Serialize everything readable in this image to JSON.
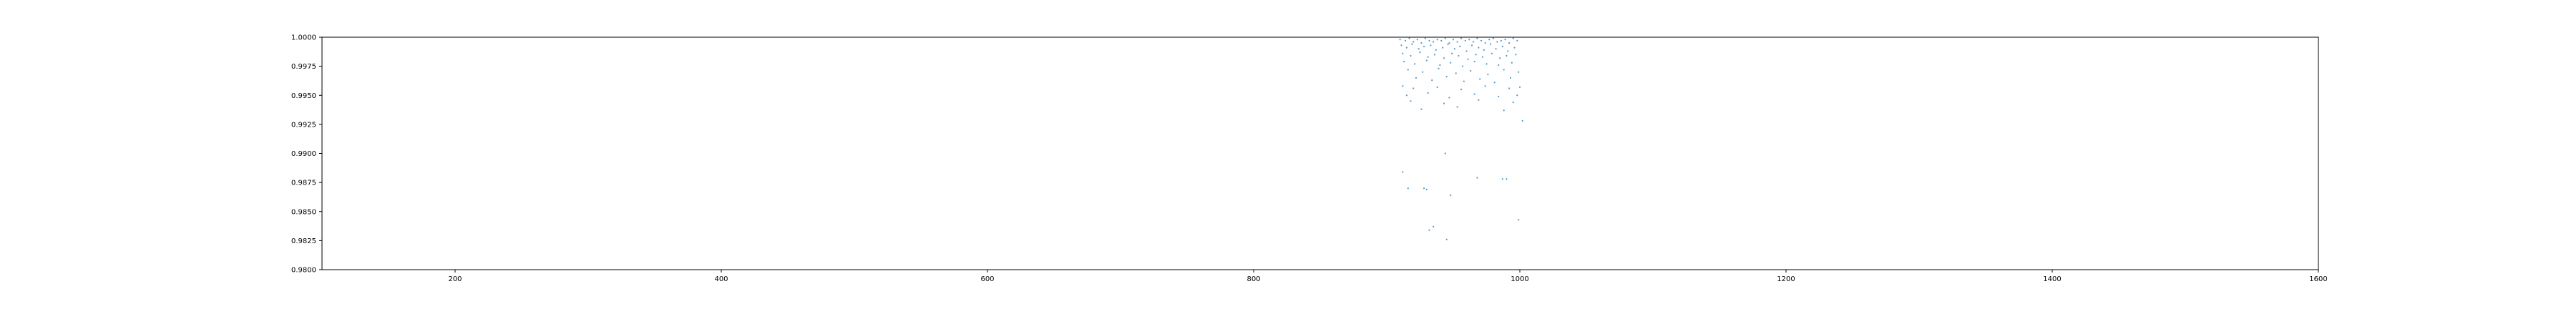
{
  "chart_data": {
    "type": "scatter",
    "title": "",
    "xlabel": "",
    "ylabel": "",
    "xlim": [
      100,
      1600
    ],
    "ylim": [
      0.98,
      1.0
    ],
    "x_ticks": [
      200,
      400,
      600,
      800,
      1000,
      1200,
      1400,
      1600
    ],
    "x_tick_labels": [
      "200",
      "400",
      "600",
      "800",
      "1000",
      "1200",
      "1400",
      "1600"
    ],
    "y_ticks": [
      0.98,
      0.9825,
      0.985,
      0.9875,
      0.99,
      0.9925,
      0.995,
      0.9975,
      1.0
    ],
    "y_tick_labels": [
      "0.9800",
      "0.9825",
      "0.9850",
      "0.9875",
      "0.9900",
      "0.9925",
      "0.9950",
      "0.9975",
      "1.0000"
    ],
    "grid": false,
    "series": [
      {
        "color": "#1f77b4",
        "marker": "point",
        "x": [
          910,
          914,
          917,
          920,
          923,
          926,
          929,
          932,
          935,
          938,
          941,
          944,
          947,
          950,
          953,
          956,
          959,
          962,
          965,
          968,
          971,
          974,
          977,
          980,
          983,
          986,
          989,
          992,
          995,
          998,
          911,
          915,
          919,
          924,
          928,
          933,
          937,
          942,
          946,
          951,
          955,
          960,
          964,
          969,
          973,
          978,
          982,
          987,
          991,
          996,
          912,
          918,
          925,
          931,
          936,
          943,
          949,
          954,
          961,
          967,
          972,
          979,
          985,
          990,
          997,
          913,
          921,
          930,
          940,
          948,
          957,
          966,
          975,
          984,
          994,
          916,
          927,
          939,
          952,
          963,
          976,
          988,
          999,
          922,
          934,
          945,
          958,
          970,
          981,
          993,
          912,
          920,
          938,
          956,
          974,
          992,
          1000,
          915,
          931,
          947,
          966,
          984,
          998,
          918,
          943,
          969,
          995,
          926,
          953,
          988,
          1002,
          912,
          944,
          990,
          968,
          987,
          928,
          930,
          916,
          948,
          932,
          999,
          935,
          945
        ],
        "y": [
          0.9998,
          0.9997,
          0.9999,
          0.9996,
          0.9998,
          0.9995,
          0.9999,
          0.9997,
          0.9996,
          0.9998,
          0.9997,
          0.9999,
          0.9995,
          0.9998,
          0.9996,
          0.9999,
          0.9997,
          0.9998,
          0.9996,
          0.9999,
          0.9997,
          0.9995,
          0.9998,
          0.9999,
          0.9996,
          0.9997,
          0.9998,
          0.9995,
          0.9999,
          0.9997,
          0.9993,
          0.9991,
          0.9994,
          0.999,
          0.9992,
          0.9993,
          0.9989,
          0.9991,
          0.9994,
          0.999,
          0.9992,
          0.9988,
          0.9993,
          0.9991,
          0.9989,
          0.9994,
          0.999,
          0.9992,
          0.9988,
          0.9991,
          0.9986,
          0.9984,
          0.9987,
          0.9983,
          0.9985,
          0.9982,
          0.9986,
          0.9984,
          0.9981,
          0.9985,
          0.9983,
          0.9986,
          0.9982,
          0.9984,
          0.9985,
          0.9979,
          0.9977,
          0.998,
          0.9976,
          0.9978,
          0.9975,
          0.9979,
          0.9977,
          0.9976,
          0.9978,
          0.9972,
          0.997,
          0.9973,
          0.9969,
          0.9971,
          0.9968,
          0.9972,
          0.997,
          0.9965,
          0.9963,
          0.9966,
          0.9962,
          0.9964,
          0.9961,
          0.9965,
          0.9958,
          0.9956,
          0.9957,
          0.9955,
          0.9958,
          0.9956,
          0.9957,
          0.995,
          0.9952,
          0.9948,
          0.9951,
          0.9949,
          0.995,
          0.9945,
          0.9943,
          0.9946,
          0.9944,
          0.9938,
          0.994,
          0.9937,
          0.9928,
          0.9884,
          0.99,
          0.9878,
          0.9879,
          0.9878,
          0.987,
          0.9869,
          0.987,
          0.9864,
          0.9834,
          0.9843,
          0.9837,
          0.9826
        ]
      }
    ]
  }
}
